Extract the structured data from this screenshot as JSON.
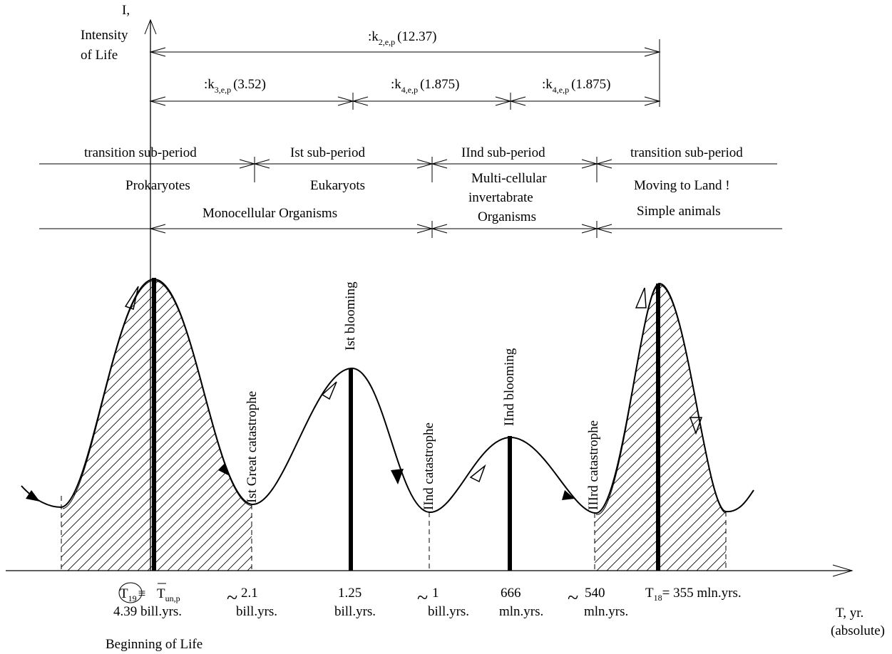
{
  "axes": {
    "y_label": [
      "I,",
      "Intensity",
      "of Life"
    ],
    "x_label": [
      "T, yr.",
      "(absolute)"
    ]
  },
  "coefficients": [
    {
      "base": ":k",
      "sub": "2,e,p",
      "value": "(12.37)"
    },
    {
      "base": ":k",
      "sub": "3,e,p",
      "value": "(3.52)"
    },
    {
      "base": ":k",
      "sub": "4,e,p",
      "value": "(1.875)"
    },
    {
      "base": ":k",
      "sub": "4,e,p",
      "value": "(1.875)"
    }
  ],
  "sub_periods": [
    "transition sub-period",
    "Ist sub-period",
    "IInd sub-period",
    "transition sub-period"
  ],
  "organisms": {
    "prokaryotes": "Prokaryotes",
    "eukaryots": "Eukaryots",
    "monocellular": "Monocellular Organisms",
    "multicellular": [
      "Multi-cellular",
      "invertabrate",
      "Organisms"
    ],
    "moving": "Moving to Land !",
    "simple": "Simple animals"
  },
  "events": [
    "Ist Great catastrophe",
    "Ist blooming",
    "IInd catastrophe",
    "IInd blooming",
    "IIIrd catastrophe"
  ],
  "time_labels": {
    "t19": {
      "T": "T",
      "sub": "19",
      "equiv": "≡",
      "Tbar": "T",
      "Tsub": "un,p",
      "value": "4.39 bill.yrs."
    },
    "l21": {
      "tilde": "~",
      "top": "2.1",
      "bottom": "bill.yrs."
    },
    "l125": {
      "top": "1.25",
      "bottom": "bill.yrs."
    },
    "l1": {
      "tilde": "~",
      "top": "1",
      "bottom": "bill.yrs."
    },
    "l666": {
      "top": "666",
      "bottom": "mln.yrs."
    },
    "l540": {
      "tilde": "~",
      "top": "540",
      "bottom": "mln.yrs."
    },
    "t18": {
      "T": "T",
      "sub": "18",
      "rest": "= 355 mln.yrs."
    }
  },
  "beginning": "Beginning of Life"
}
